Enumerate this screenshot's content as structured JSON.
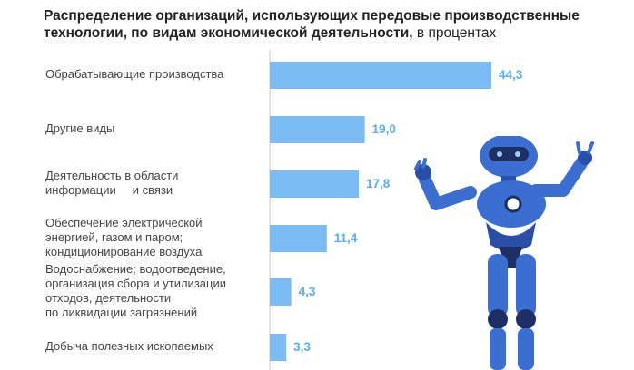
{
  "title": {
    "bold": "Распределение организаций, использующих передовые производственные технологии, по видам экономической деятельности,",
    "normal": " в процентах"
  },
  "colors": {
    "bar": "#7cbbf4",
    "value": "#5aaef0",
    "axis": "#c8c8c8"
  },
  "chart_data": {
    "type": "bar",
    "orientation": "horizontal",
    "title": "Распределение организаций, использующих передовые производственные технологии, по видам экономической деятельности, в процентах",
    "xlim": [
      0,
      50
    ],
    "categories": [
      [
        "Обрабатывающие производства"
      ],
      [
        "Другие виды"
      ],
      [
        "Деятельность в области",
        "информации     и связи"
      ],
      [
        "Обеспечение электрической",
        "энергией, газом и паром;",
        "кондиционирование воздуха"
      ],
      [
        "Водоснабжение; водоотведение,",
        "организация сбора и утилизации",
        "отходов, деятельности",
        "по ликвидации загрязнений"
      ],
      [
        "Добыча полезных ископаемых"
      ]
    ],
    "values": [
      44.3,
      19.0,
      17.8,
      11.4,
      4.3,
      3.3
    ],
    "value_labels": [
      "44,3",
      "19,0",
      "17,8",
      "11,4",
      "4,3",
      "3,3"
    ]
  },
  "decoration": {
    "robot_icon": "robot-illustration"
  }
}
